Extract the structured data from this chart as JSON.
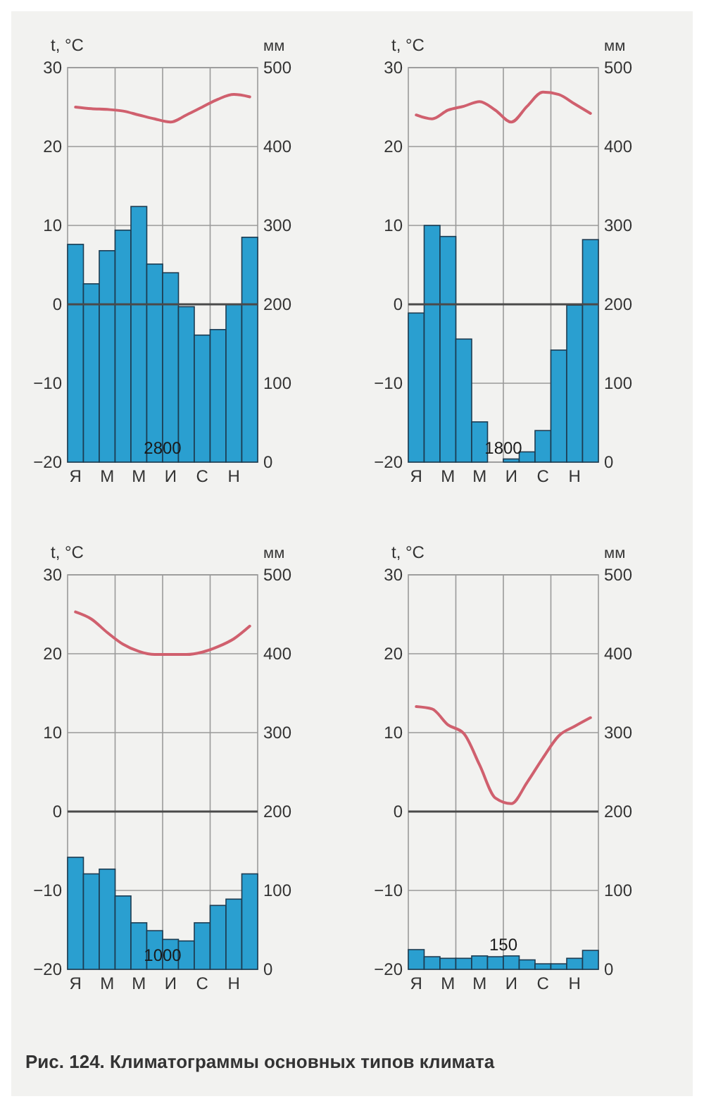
{
  "chart_data": [
    {
      "type": "bar",
      "ylabel": "t, °C",
      "y2label": "мм",
      "categories": [
        "Я",
        null,
        "М",
        null,
        "М",
        null,
        "И",
        null,
        "С",
        null,
        "Н",
        null
      ],
      "ylim": [
        -20,
        30
      ],
      "yticks": [
        -20,
        -10,
        0,
        10,
        20,
        30
      ],
      "y2lim": [
        0,
        500
      ],
      "y2ticks": [
        0,
        100,
        200,
        300,
        400,
        500
      ],
      "grid": true,
      "ref_lines": [
        {
          "axis": "y",
          "value": 0,
          "color": "#4a4a4a"
        }
      ],
      "annotations": [
        "2800"
      ],
      "series": [
        {
          "axis": "y2",
          "color": "#2a9fd0",
          "values": [
            276,
            226,
            268,
            294,
            324,
            251,
            240,
            197,
            161,
            168,
            200,
            285
          ]
        },
        {
          "type": "line",
          "axis": "y",
          "color": "#d0606e",
          "values": [
            25,
            24.8,
            24.7,
            24.5,
            24,
            23.5,
            23.1,
            24,
            25,
            26,
            26.6,
            26.3
          ]
        }
      ]
    },
    {
      "type": "bar",
      "ylabel": "t, °C",
      "y2label": "мм",
      "categories": [
        "Я",
        null,
        "М",
        null,
        "М",
        null,
        "И",
        null,
        "С",
        null,
        "Н",
        null
      ],
      "ylim": [
        -20,
        30
      ],
      "yticks": [
        -20,
        -10,
        0,
        10,
        20,
        30
      ],
      "y2lim": [
        0,
        500
      ],
      "y2ticks": [
        0,
        100,
        200,
        300,
        400,
        500
      ],
      "grid": true,
      "ref_lines": [
        {
          "axis": "y",
          "value": 0,
          "color": "#4a4a4a"
        }
      ],
      "annotations": [
        "1800"
      ],
      "series": [
        {
          "axis": "y2",
          "color": "#2a9fd0",
          "values": [
            189,
            300,
            286,
            156,
            51,
            0,
            4,
            13,
            40,
            142,
            199,
            282
          ]
        },
        {
          "type": "line",
          "axis": "y",
          "color": "#d0606e",
          "values": [
            24,
            23.5,
            24.6,
            25.1,
            25.7,
            24.6,
            23.1,
            25.1,
            26.9,
            26.6,
            25.4,
            24.2
          ]
        }
      ]
    },
    {
      "type": "bar",
      "ylabel": "t, °C",
      "y2label": "мм",
      "categories": [
        "Я",
        null,
        "М",
        null,
        "М",
        null,
        "И",
        null,
        "С",
        null,
        "Н",
        null
      ],
      "ylim": [
        -20,
        30
      ],
      "yticks": [
        -20,
        -10,
        0,
        10,
        20,
        30
      ],
      "y2lim": [
        0,
        500
      ],
      "y2ticks": [
        0,
        100,
        200,
        300,
        400,
        500
      ],
      "grid": true,
      "ref_lines": [
        {
          "axis": "y",
          "value": 0,
          "color": "#4a4a4a"
        }
      ],
      "annotations": [
        "1000"
      ],
      "series": [
        {
          "axis": "y2",
          "color": "#2a9fd0",
          "values": [
            142,
            121,
            127,
            93,
            59,
            49,
            38,
            36,
            59,
            81,
            89,
            121
          ]
        },
        {
          "type": "line",
          "axis": "y",
          "color": "#d0606e",
          "values": [
            25.3,
            24.4,
            22.7,
            21.2,
            20.3,
            19.9,
            19.9,
            19.9,
            20.2,
            20.9,
            21.9,
            23.5
          ]
        }
      ]
    },
    {
      "type": "bar",
      "ylabel": "t, °C",
      "y2label": "мм",
      "categories": [
        "Я",
        null,
        "М",
        null,
        "М",
        null,
        "И",
        null,
        "С",
        null,
        "Н",
        null
      ],
      "ylim": [
        -20,
        30
      ],
      "yticks": [
        -20,
        -10,
        0,
        10,
        20,
        30
      ],
      "y2lim": [
        0,
        500
      ],
      "y2ticks": [
        0,
        100,
        200,
        300,
        400,
        500
      ],
      "grid": true,
      "ref_lines": [
        {
          "axis": "y",
          "value": 0,
          "color": "#4a4a4a"
        }
      ],
      "annotations": [
        "150",
        "Рис. 124. Климатограммы основных типов климата"
      ],
      "series": [
        {
          "axis": "y2",
          "color": "#2a9fd0",
          "values": [
            25,
            16,
            14,
            14,
            17,
            16,
            17,
            12,
            7,
            7,
            14,
            24
          ]
        },
        {
          "type": "line",
          "axis": "y",
          "color": "#d0606e",
          "values": [
            13.3,
            13,
            11,
            9.9,
            5.9,
            1.7,
            1,
            3.7,
            6.8,
            9.6,
            10.8,
            11.9
          ]
        }
      ]
    }
  ]
}
